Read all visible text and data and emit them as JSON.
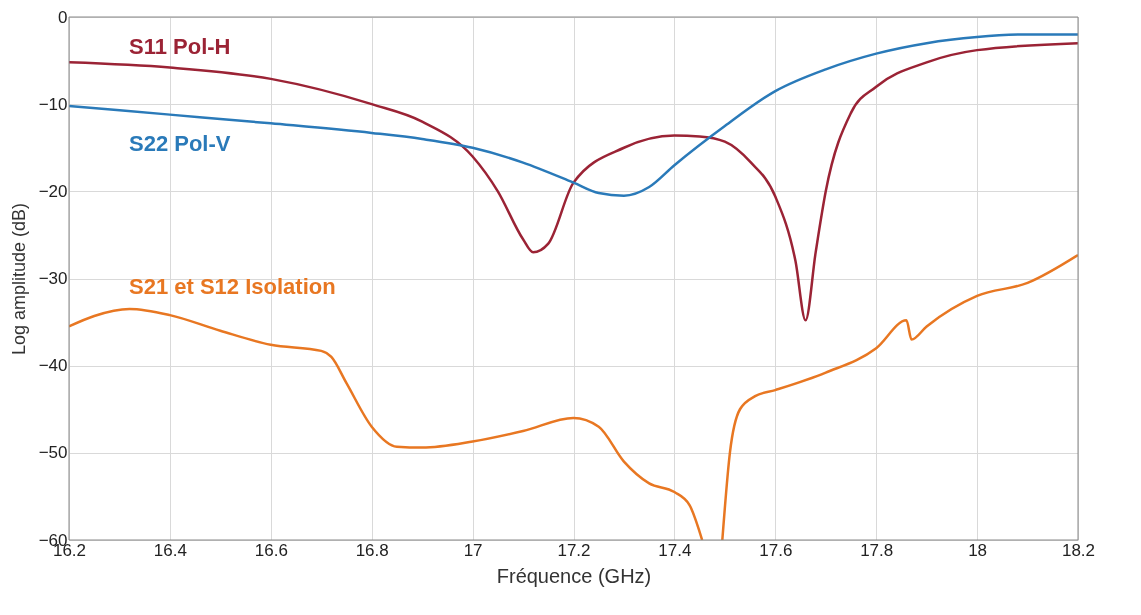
{
  "chart_data": {
    "type": "line",
    "xlabel": "Fréquence (GHz)",
    "ylabel": "Log amplitude (dB)",
    "xlim": [
      16.2,
      18.2
    ],
    "xticks": [
      16.2,
      16.4,
      16.6,
      16.8,
      17,
      17.2,
      17.4,
      17.6,
      17.8,
      18,
      18.2
    ],
    "ylim": [
      -60,
      0
    ],
    "yticks": [
      -60,
      -50,
      -40,
      -30,
      -20,
      -10,
      0
    ],
    "grid": true,
    "legend": false,
    "line_style": "solid",
    "marker": "none",
    "series": [
      {
        "name": "S11 Pol-H",
        "color": "#9b2335",
        "x": [
          16.2,
          16.4,
          16.6,
          16.8,
          16.9,
          17.0,
          17.05,
          17.1,
          17.12,
          17.15,
          17.2,
          17.3,
          17.4,
          17.45,
          17.5,
          17.55,
          17.6,
          17.64,
          17.66,
          17.68,
          17.7,
          17.75,
          17.8,
          17.9,
          18.0,
          18.2
        ],
        "values": [
          -5.2,
          -5.8,
          -7.1,
          -10,
          -12,
          -16,
          -20,
          -25.5,
          -27,
          -26,
          -19,
          -15,
          -13.6,
          -13.7,
          -14.3,
          -16.6,
          -20.6,
          -28,
          -34.8,
          -27,
          -20,
          -11,
          -8,
          -5.2,
          -3.8,
          -3.0
        ]
      },
      {
        "name": "S22 Pol-V",
        "color": "#2a7ab9",
        "x": [
          16.2,
          16.4,
          16.6,
          16.8,
          16.9,
          17.0,
          17.1,
          17.2,
          17.25,
          17.3,
          17.35,
          17.4,
          17.5,
          17.6,
          17.7,
          17.8,
          17.9,
          18.0,
          18.1,
          18.2
        ],
        "values": [
          -10.2,
          -11.2,
          -12.2,
          -13.3,
          -14,
          -15,
          -16.7,
          -19,
          -20.2,
          -20.5,
          -19.5,
          -17,
          -12.5,
          -8.5,
          -6,
          -4.2,
          -3,
          -2.3,
          -2,
          -2
        ]
      },
      {
        "name": "S21 et S12 Isolation",
        "color": "#e87722",
        "x": [
          16.2,
          16.25,
          16.32,
          16.4,
          16.5,
          16.6,
          16.7,
          16.72,
          16.75,
          16.8,
          16.85,
          16.9,
          17.0,
          17.1,
          17.2,
          17.25,
          17.3,
          17.35,
          17.4,
          17.43,
          17.455,
          17.475,
          17.495,
          17.51,
          17.53,
          17.56,
          17.6,
          17.7,
          17.8,
          17.86,
          17.87,
          17.9,
          18.0,
          18.1,
          18.2
        ],
        "values": [
          -35.5,
          -34.3,
          -33.5,
          -34.2,
          -36,
          -37.6,
          -38.3,
          -39,
          -42,
          -47,
          -49.3,
          -49.4,
          -48.7,
          -47.5,
          -46,
          -47,
          -51,
          -53.5,
          -54.5,
          -56,
          -60,
          null,
          -60,
          -50,
          -45,
          -43.5,
          -42.8,
          -40.8,
          -38,
          -34.8,
          -37,
          -35.5,
          -32,
          -30.5,
          -27.3
        ]
      }
    ]
  }
}
